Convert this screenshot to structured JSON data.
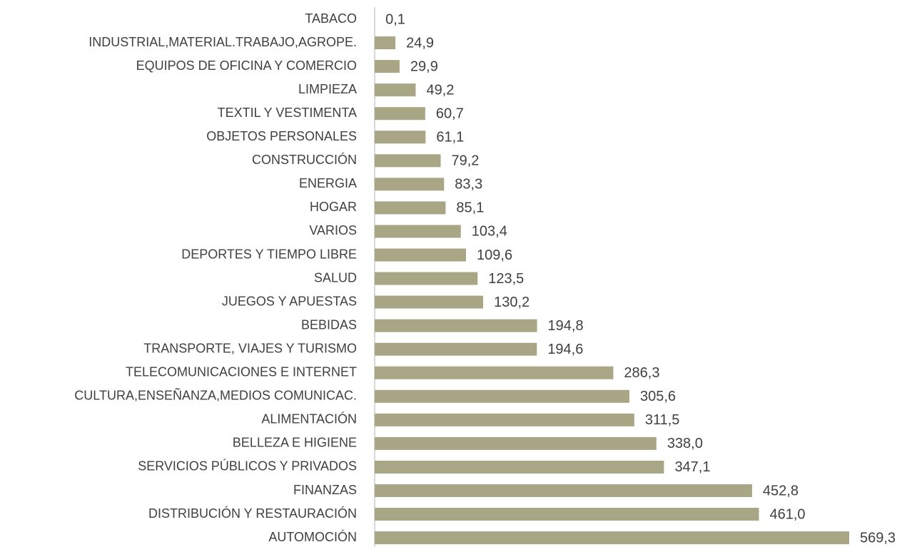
{
  "chart_data": {
    "type": "barh",
    "categories": [
      "TABACO",
      "INDUSTRIAL,MATERIAL.TRABAJO,AGROPE.",
      "EQUIPOS DE OFICINA Y COMERCIO",
      "LIMPIEZA",
      "TEXTIL Y VESTIMENTA",
      "OBJETOS PERSONALES",
      "CONSTRUCCIÓN",
      "ENERGIA",
      "HOGAR",
      "VARIOS",
      "DEPORTES Y TIEMPO LIBRE",
      "SALUD",
      "JUEGOS Y APUESTAS",
      "BEBIDAS",
      "TRANSPORTE, VIAJES Y TURISMO",
      "TELECOMUNICACIONES E INTERNET",
      "CULTURA,ENSEÑANZA,MEDIOS COMUNICAC.",
      "ALIMENTACIÓN",
      "BELLEZA E HIGIENE",
      "SERVICIOS PÚBLICOS Y PRIVADOS",
      "FINANZAS",
      "DISTRIBUCIÓN Y RESTAURACIÓN",
      "AUTOMOCIÓN"
    ],
    "values": [
      0.1,
      24.9,
      29.9,
      49.2,
      60.7,
      61.1,
      79.2,
      83.3,
      85.1,
      103.4,
      109.6,
      123.5,
      130.2,
      194.8,
      194.6,
      286.3,
      305.6,
      311.5,
      338.0,
      347.1,
      452.8,
      461.0,
      569.3
    ],
    "value_labels": [
      "0,1",
      "24,9",
      "29,9",
      "49,2",
      "60,7",
      "61,1",
      "79,2",
      "83,3",
      "85,1",
      "103,4",
      "109,6",
      "123,5",
      "130,2",
      "194,8",
      "194,6",
      "286,3",
      "305,6",
      "311,5",
      "338,0",
      "347,1",
      "452,8",
      "461,0",
      "569,3"
    ],
    "color": "#a9a685"
  }
}
